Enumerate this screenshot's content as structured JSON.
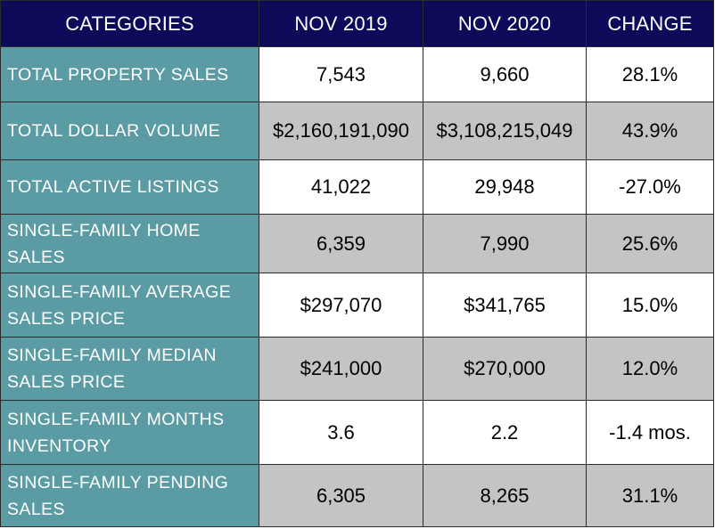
{
  "chart_data": {
    "type": "table",
    "columns": [
      "CATEGORIES",
      "NOV 2019",
      "NOV 2020",
      "CHANGE"
    ],
    "rows": [
      [
        "TOTAL PROPERTY SALES",
        "7,543",
        "9,660",
        "28.1%"
      ],
      [
        "TOTAL DOLLAR VOLUME",
        "$2,160,191,090",
        "$3,108,215,049",
        "43.9%"
      ],
      [
        "TOTAL ACTIVE LISTINGS",
        "41,022",
        "29,948",
        "-27.0%"
      ],
      [
        "SINGLE-FAMILY HOME SALES",
        "6,359",
        "7,990",
        "25.6%"
      ],
      [
        "SINGLE-FAMILY AVERAGE SALES PRICE",
        "$297,070",
        "$341,765",
        "15.0%"
      ],
      [
        "SINGLE-FAMILY MEDIAN SALES PRICE",
        "$241,000",
        "$270,000",
        "12.0%"
      ],
      [
        "SINGLE-FAMILY MONTHS INVENTORY",
        "3.6",
        "2.2",
        "-1.4 mos."
      ],
      [
        "SINGLE-FAMILY PENDING SALES",
        "6,305",
        "8,265",
        "31.1%"
      ]
    ]
  },
  "colors": {
    "header_bg": "#0d0a5a",
    "header_text": "#ffffff",
    "category_bg": "#5b9ba4",
    "category_text": "#ffffff",
    "row_bg_light": "#ffffff",
    "row_bg_gray": "#c4c4c4"
  }
}
